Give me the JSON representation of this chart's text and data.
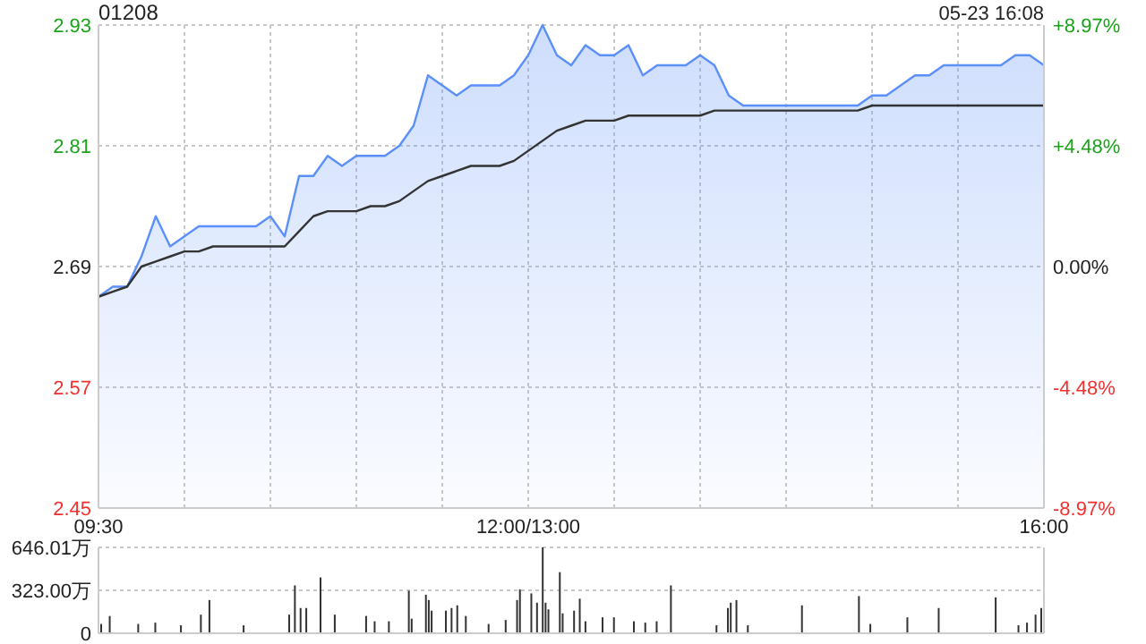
{
  "chart_data": [
    {
      "type": "line",
      "title": "01208",
      "annotations": [
        "05-23 16:08"
      ],
      "categories": [
        "09:30",
        null,
        null,
        null,
        null,
        null,
        null,
        null,
        null,
        null,
        null,
        null,
        null,
        null,
        null,
        null,
        null,
        null,
        null,
        null,
        null,
        null,
        null,
        null,
        null,
        null,
        null,
        null,
        null,
        null,
        "12:00/13:00",
        null,
        null,
        null,
        null,
        null,
        null,
        null,
        null,
        null,
        null,
        null,
        null,
        null,
        null,
        null,
        null,
        null,
        null,
        null,
        null,
        null,
        null,
        null,
        null,
        null,
        null,
        null,
        null,
        null,
        null,
        null,
        null,
        null,
        null,
        null,
        "16:00"
      ],
      "ylim": [
        2.45,
        2.93
      ],
      "yticks": [
        2.45,
        2.57,
        2.69,
        2.81,
        2.93
      ],
      "y2lim": [
        -8.97,
        8.97
      ],
      "y2ticks": [
        {
          "value": -8.97,
          "label": "-8.97%"
        },
        {
          "value": -4.48,
          "label": "-4.48%"
        },
        {
          "value": 0,
          "label": "0.00%"
        },
        {
          "value": 4.48,
          "label": "+4.48%"
        },
        {
          "value": 8.97,
          "label": "+8.97%"
        }
      ],
      "grid": true,
      "series": [
        {
          "type": "area",
          "color": "#5b8ff9",
          "values": [
            2.66,
            2.67,
            2.67,
            2.7,
            2.74,
            2.71,
            2.72,
            2.73,
            2.73,
            2.73,
            2.73,
            2.73,
            2.74,
            2.72,
            2.78,
            2.78,
            2.8,
            2.79,
            2.8,
            2.8,
            2.8,
            2.81,
            2.83,
            2.88,
            2.87,
            2.86,
            2.87,
            2.87,
            2.87,
            2.88,
            2.9,
            2.93,
            2.9,
            2.89,
            2.91,
            2.9,
            2.9,
            2.91,
            2.88,
            2.89,
            2.89,
            2.89,
            2.9,
            2.89,
            2.86,
            2.85,
            2.85,
            2.85,
            2.85,
            2.85,
            2.85,
            2.85,
            2.85,
            2.85,
            2.86,
            2.86,
            2.87,
            2.88,
            2.88,
            2.89,
            2.89,
            2.89,
            2.89,
            2.89,
            2.9,
            2.9,
            2.89
          ]
        },
        {
          "color": "#333333",
          "values": [
            2.66,
            2.665,
            2.67,
            2.69,
            2.695,
            2.7,
            2.705,
            2.705,
            2.71,
            2.71,
            2.71,
            2.71,
            2.71,
            2.71,
            2.725,
            2.74,
            2.745,
            2.745,
            2.745,
            2.75,
            2.75,
            2.755,
            2.765,
            2.775,
            2.78,
            2.785,
            2.79,
            2.79,
            2.79,
            2.795,
            2.805,
            2.815,
            2.825,
            2.83,
            2.835,
            2.835,
            2.835,
            2.84,
            2.84,
            2.84,
            2.84,
            2.84,
            2.84,
            2.845,
            2.845,
            2.845,
            2.845,
            2.845,
            2.845,
            2.845,
            2.845,
            2.845,
            2.845,
            2.845,
            2.85,
            2.85,
            2.85,
            2.85,
            2.85,
            2.85,
            2.85,
            2.85,
            2.85,
            2.85,
            2.85,
            2.85,
            2.85
          ]
        }
      ]
    },
    {
      "type": "bar",
      "color": "#333333",
      "tick_labels": "y",
      "ylim": [
        0,
        646.01
      ],
      "yticks": [
        0,
        {
          "value": 323,
          "label": "323.00万"
        },
        {
          "value": 646.01,
          "label": "646.01万"
        }
      ],
      "grid": "y",
      "categories": [
        null,
        null,
        null,
        null,
        null,
        null,
        null,
        null,
        null,
        null,
        null,
        null,
        null,
        null,
        null,
        null,
        null,
        null,
        null,
        null,
        null,
        null,
        null,
        null,
        null,
        null,
        null,
        null,
        null,
        null,
        null,
        null,
        null,
        null,
        null,
        null,
        null,
        null,
        null,
        null,
        null,
        null,
        null,
        null,
        null,
        null,
        null,
        null,
        null,
        null,
        null,
        null,
        null,
        null,
        null,
        null,
        null,
        null,
        null,
        null,
        null,
        null,
        null,
        null,
        null,
        null,
        null,
        null,
        null,
        null,
        null,
        null,
        null,
        null,
        null,
        null,
        null,
        null,
        null,
        null,
        null,
        null,
        null,
        null,
        null,
        null,
        null,
        null,
        null,
        null,
        null,
        null,
        null,
        null,
        null,
        null,
        null,
        null,
        null,
        null,
        null,
        null,
        null,
        null,
        null,
        null,
        null,
        null,
        null,
        null,
        null,
        null,
        null,
        null,
        null,
        null,
        null,
        null,
        null,
        null,
        null,
        null,
        null,
        null,
        null,
        null,
        null,
        null,
        null,
        null,
        null,
        null,
        null,
        null,
        null,
        null,
        null,
        null,
        null,
        null,
        null,
        null,
        null,
        null,
        null,
        null,
        null,
        null,
        null,
        null,
        null,
        null,
        null,
        null,
        null,
        null,
        null,
        null,
        null,
        null,
        null,
        null,
        null,
        null,
        null,
        null,
        null,
        null,
        null,
        null,
        null,
        null,
        null,
        null,
        null,
        null,
        null,
        null,
        null,
        null,
        null,
        null,
        null,
        null,
        null,
        null,
        null,
        null,
        null,
        null,
        null,
        null,
        null,
        null,
        null,
        null,
        null,
        null,
        null,
        null,
        null,
        null,
        null,
        null,
        null,
        null,
        null,
        null,
        null,
        null,
        null,
        null,
        null,
        null,
        null,
        null,
        null,
        null,
        null,
        null,
        null,
        null,
        null,
        null,
        null,
        null,
        null,
        null,
        null,
        null,
        null,
        null,
        null,
        null,
        null,
        null,
        null,
        null,
        null,
        null,
        null,
        null,
        null,
        null,
        null,
        null,
        null,
        null,
        null,
        null,
        null,
        null,
        null,
        null,
        null,
        null,
        null,
        null,
        null,
        null,
        null,
        null,
        null,
        null,
        null,
        null,
        null,
        null,
        null,
        null,
        null,
        null,
        null,
        null,
        null,
        null,
        null,
        null,
        null,
        null,
        null,
        null,
        null,
        null,
        null,
        null,
        null,
        null,
        null,
        null,
        null,
        null,
        null,
        null,
        null,
        null,
        null,
        null,
        null,
        null,
        null,
        null,
        null,
        null,
        null,
        null,
        null,
        null,
        null,
        null,
        null,
        null,
        null,
        null,
        null,
        null,
        null,
        null,
        null,
        null,
        null,
        null,
        null,
        null,
        null,
        null,
        null,
        null,
        null,
        null,
        null
      ],
      "values": [
        70,
        null,
        null,
        130,
        null,
        null,
        null,
        null,
        null,
        null,
        null,
        null,
        null,
        70,
        null,
        null,
        null,
        null,
        null,
        80,
        null,
        null,
        null,
        null,
        null,
        null,
        null,
        null,
        60,
        null,
        null,
        null,
        null,
        null,
        null,
        140,
        null,
        null,
        250,
        null,
        null,
        null,
        null,
        null,
        null,
        null,
        null,
        null,
        null,
        null,
        60,
        null,
        null,
        null,
        null,
        null,
        null,
        null,
        null,
        null,
        null,
        null,
        null,
        null,
        null,
        null,
        140,
        null,
        360,
        null,
        190,
        null,
        190,
        null,
        null,
        null,
        null,
        420,
        null,
        null,
        null,
        null,
        140,
        null,
        null,
        null,
        null,
        null,
        null,
        null,
        null,
        null,
        null,
        130,
        null,
        null,
        90,
        null,
        null,
        null,
        null,
        90,
        null,
        null,
        null,
        null,
        null,
        null,
        320,
        110,
        null,
        null,
        null,
        null,
        290,
        250,
        170,
        null,
        null,
        null,
        null,
        170,
        null,
        190,
        null,
        210,
        null,
        null,
        130,
        null,
        null,
        null,
        null,
        null,
        null,
        null,
        70,
        null,
        null,
        null,
        null,
        null,
        100,
        null,
        null,
        null,
        250,
        330,
        null,
        null,
        null,
        300,
        null,
        230,
        null,
        646.01,
        230,
        180,
        null,
        null,
        null,
        460,
        150,
        null,
        null,
        null,
        170,
        null,
        260,
        null,
        90,
        null,
        null,
        null,
        null,
        null,
        120,
        null,
        null,
        null,
        120,
        null,
        null,
        null,
        null,
        null,
        null,
        90,
        null,
        null,
        null,
        80,
        null,
        null,
        null,
        90,
        null,
        null,
        null,
        null,
        360,
        null,
        null,
        null,
        null,
        null,
        null,
        null,
        null,
        null,
        null,
        null,
        null,
        null,
        null,
        null,
        60,
        null,
        null,
        null,
        190,
        230,
        null,
        250,
        null,
        null,
        null,
        60,
        null,
        null,
        null,
        null,
        null,
        null,
        null,
        null,
        null,
        null,
        null,
        null,
        null,
        null,
        null,
        null,
        null,
        null,
        210,
        null,
        null,
        null,
        null,
        null,
        null,
        null,
        null,
        null,
        null,
        null,
        null,
        null,
        null,
        null,
        null,
        null,
        null,
        null,
        280,
        null,
        null,
        null,
        70,
        null,
        null,
        null,
        null,
        null,
        null,
        null,
        null,
        null,
        null,
        null,
        null,
        120,
        null,
        null,
        null,
        null,
        null,
        null,
        null,
        null,
        null,
        null,
        190,
        null,
        null,
        null,
        null,
        null,
        null,
        null,
        null,
        null,
        null,
        null,
        null,
        null,
        null,
        null,
        null,
        null,
        null,
        null,
        270,
        null,
        null,
        null,
        null,
        null,
        null,
        null,
        60,
        null,
        null,
        80,
        null,
        null,
        140,
        null,
        190
      ]
    }
  ]
}
